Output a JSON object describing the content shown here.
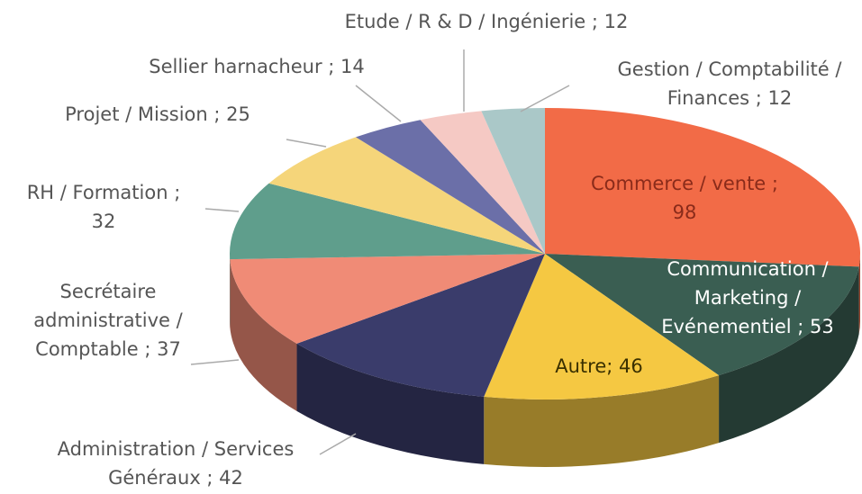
{
  "chart_data": {
    "type": "pie",
    "values": [
      98,
      53,
      46,
      42,
      37,
      32,
      25,
      14,
      12,
      12
    ],
    "value_labels": [
      [
        "Commerce / vente ;",
        "98"
      ],
      [
        "Communication /",
        "Marketing /",
        "Evénementiel ; 53"
      ],
      [
        "Autre; 46"
      ],
      [
        "Administration / Services",
        "Généraux ; 42"
      ],
      [
        "Secrétaire",
        "administrative /",
        "Comptable ; 37"
      ],
      [
        "RH / Formation ;",
        "32"
      ],
      [
        "Projet / Mission ; 25"
      ],
      [
        "Sellier harnacheur ; 14"
      ],
      [
        "Etude / R & D / Ingénierie ; 12"
      ],
      [
        "Gestion / Comptabilité /",
        "Finances ; 12"
      ]
    ],
    "colors": [
      "#f26b47",
      "#3a5e52",
      "#f5c842",
      "#3a3c6b",
      "#f08b76",
      "#5f9e8c",
      "#f5d57a",
      "#6b6fa8",
      "#f5c9c4",
      "#aac8c8"
    ]
  }
}
